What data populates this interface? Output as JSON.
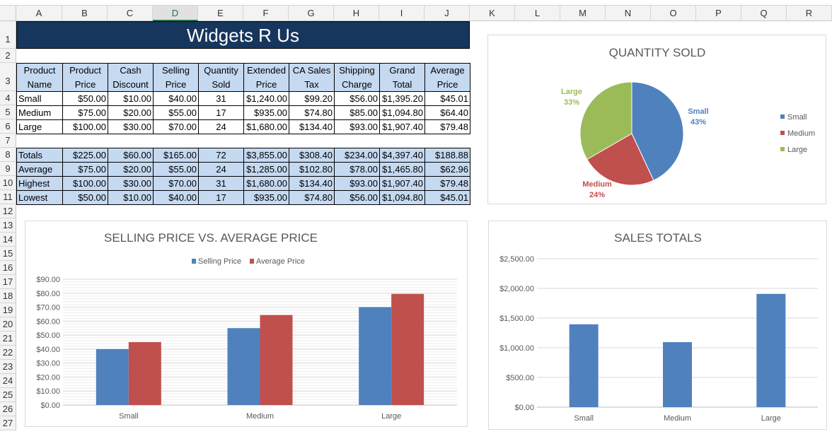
{
  "columns": [
    "A",
    "B",
    "C",
    "D",
    "E",
    "F",
    "G",
    "H",
    "I",
    "J",
    "K",
    "L",
    "M",
    "N",
    "O",
    "P",
    "Q",
    "R"
  ],
  "selected_column": "D",
  "rows": [
    "1",
    "2",
    "3",
    "4",
    "5",
    "6",
    "7",
    "8",
    "9",
    "10",
    "11",
    "12",
    "13",
    "14",
    "15",
    "16",
    "17",
    "18",
    "19",
    "20",
    "21",
    "22",
    "23",
    "24",
    "25",
    "26",
    "27"
  ],
  "title": "Widgets R Us",
  "headers": [
    [
      "Product",
      "Name"
    ],
    [
      "Product",
      "Price"
    ],
    [
      "Cash",
      "Discount"
    ],
    [
      "Selling",
      "Price"
    ],
    [
      "Quantity",
      "Sold"
    ],
    [
      "Extended",
      "Price"
    ],
    [
      "CA Sales",
      "Tax"
    ],
    [
      "Shipping",
      "Charge"
    ],
    [
      "Grand",
      "Total"
    ],
    [
      "Average",
      "Price"
    ]
  ],
  "products": [
    [
      "Small",
      "$50.00",
      "$10.00",
      "$40.00",
      "31",
      "$1,240.00",
      "$99.20",
      "$56.00",
      "$1,395.20",
      "$45.01"
    ],
    [
      "Medium",
      "$75.00",
      "$20.00",
      "$55.00",
      "17",
      "$935.00",
      "$74.80",
      "$85.00",
      "$1,094.80",
      "$64.40"
    ],
    [
      "Large",
      "$100.00",
      "$30.00",
      "$70.00",
      "24",
      "$1,680.00",
      "$134.40",
      "$93.00",
      "$1,907.40",
      "$79.48"
    ]
  ],
  "summary": [
    [
      "Totals",
      "$225.00",
      "$60.00",
      "$165.00",
      "72",
      "$3,855.00",
      "$308.40",
      "$234.00",
      "$4,397.40",
      "$188.88"
    ],
    [
      "Average",
      "$75.00",
      "$20.00",
      "$55.00",
      "24",
      "$1,285.00",
      "$102.80",
      "$78.00",
      "$1,465.80",
      "$62.96"
    ],
    [
      "Highest",
      "$100.00",
      "$30.00",
      "$70.00",
      "31",
      "$1,680.00",
      "$134.40",
      "$93.00",
      "$1,907.40",
      "$79.48"
    ],
    [
      "Lowest",
      "$50.00",
      "$10.00",
      "$40.00",
      "17",
      "$935.00",
      "$74.80",
      "$56.00",
      "$1,094.80",
      "$45.01"
    ]
  ],
  "colors": {
    "blue": "#4f81bd",
    "red": "#c0504d",
    "green": "#9bbb59",
    "title_bg": "#17365d",
    "header_bg": "#c5d9f1"
  },
  "chart_data": [
    {
      "type": "pie",
      "title": "QUANTITY SOLD",
      "categories": [
        "Small",
        "Medium",
        "Large"
      ],
      "values": [
        31,
        17,
        24
      ],
      "labels": [
        "43%",
        "24%",
        "33%"
      ],
      "legend": "right"
    },
    {
      "type": "bar",
      "title": "SELLING PRICE VS. AVERAGE PRICE",
      "categories": [
        "Small",
        "Medium",
        "Large"
      ],
      "series": [
        {
          "name": "Selling Price",
          "values": [
            40,
            55,
            70
          ]
        },
        {
          "name": "Average Price",
          "values": [
            45.01,
            64.4,
            79.48
          ]
        }
      ],
      "ylim": [
        0,
        90
      ],
      "yticks": [
        "$0.00",
        "$10.00",
        "$20.00",
        "$30.00",
        "$40.00",
        "$50.00",
        "$60.00",
        "$70.00",
        "$80.00",
        "$90.00"
      ],
      "legend": "top"
    },
    {
      "type": "bar",
      "title": "SALES TOTALS",
      "categories": [
        "Small",
        "Medium",
        "Large"
      ],
      "values": [
        1395.2,
        1094.8,
        1907.4
      ],
      "ylim": [
        0,
        2500
      ],
      "yticks": [
        "$0.00",
        "$500.00",
        "$1,000.00",
        "$1,500.00",
        "$2,000.00",
        "$2,500.00"
      ]
    }
  ]
}
